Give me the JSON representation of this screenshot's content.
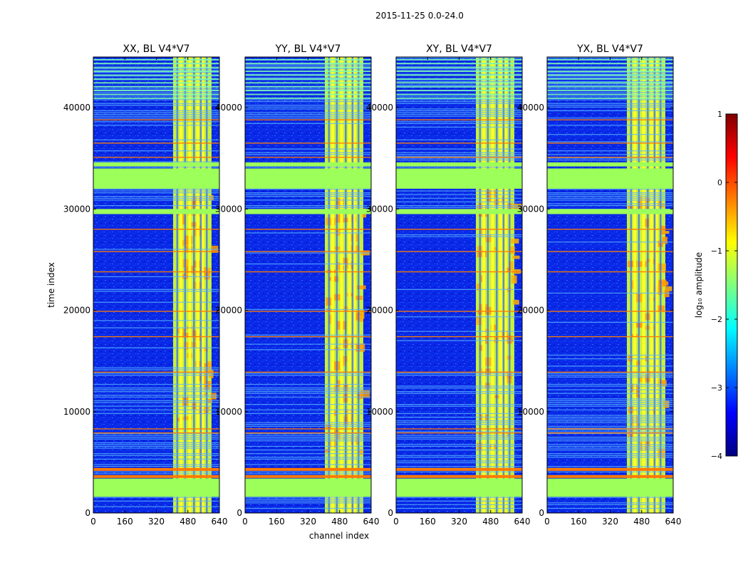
{
  "chart_data": {
    "type": "heatmap",
    "suptitle": "2015-11-25 0.0-24.0",
    "xlabel": "channel index",
    "ylabel": "time index",
    "xlim": [
      0,
      640
    ],
    "ylim": [
      0,
      45000
    ],
    "x_ticks": [
      0,
      160,
      320,
      480,
      640
    ],
    "y_ticks": [
      0,
      10000,
      20000,
      30000,
      40000
    ],
    "panels": [
      {
        "title": "XX, BL V4*V7"
      },
      {
        "title": "YY, BL V4*V7"
      },
      {
        "title": "XY, BL V4*V7"
      },
      {
        "title": "YX, BL V4*V7"
      }
    ],
    "bright_channel_band": [
      405,
      600
    ],
    "bright_channel_lines": [
      445,
      490,
      530,
      555
    ],
    "saturated_time_ranges": [
      [
        1600,
        3400
      ],
      [
        29500,
        30000
      ],
      [
        32000,
        34000
      ],
      [
        34200,
        34600
      ]
    ],
    "flagged_time_lines": [
      3600,
      4300,
      7900,
      8300,
      13900,
      17400,
      19900,
      23800,
      25800,
      28000,
      35100,
      36500,
      38800
    ],
    "colorbar": {
      "label": "log₁₀ amplitude",
      "min": -4,
      "max": 1,
      "ticks": [
        1,
        0,
        -1,
        -2,
        -3,
        -4
      ],
      "tick_labels": [
        "1",
        "0",
        "−1",
        "−2",
        "−3",
        "−4"
      ],
      "colormap": "jet",
      "colors": [
        "#00007f",
        "#0000ff",
        "#007fff",
        "#00ffff",
        "#7fff7f",
        "#ffff00",
        "#ff7f00",
        "#ff0000",
        "#7f0000"
      ]
    }
  }
}
